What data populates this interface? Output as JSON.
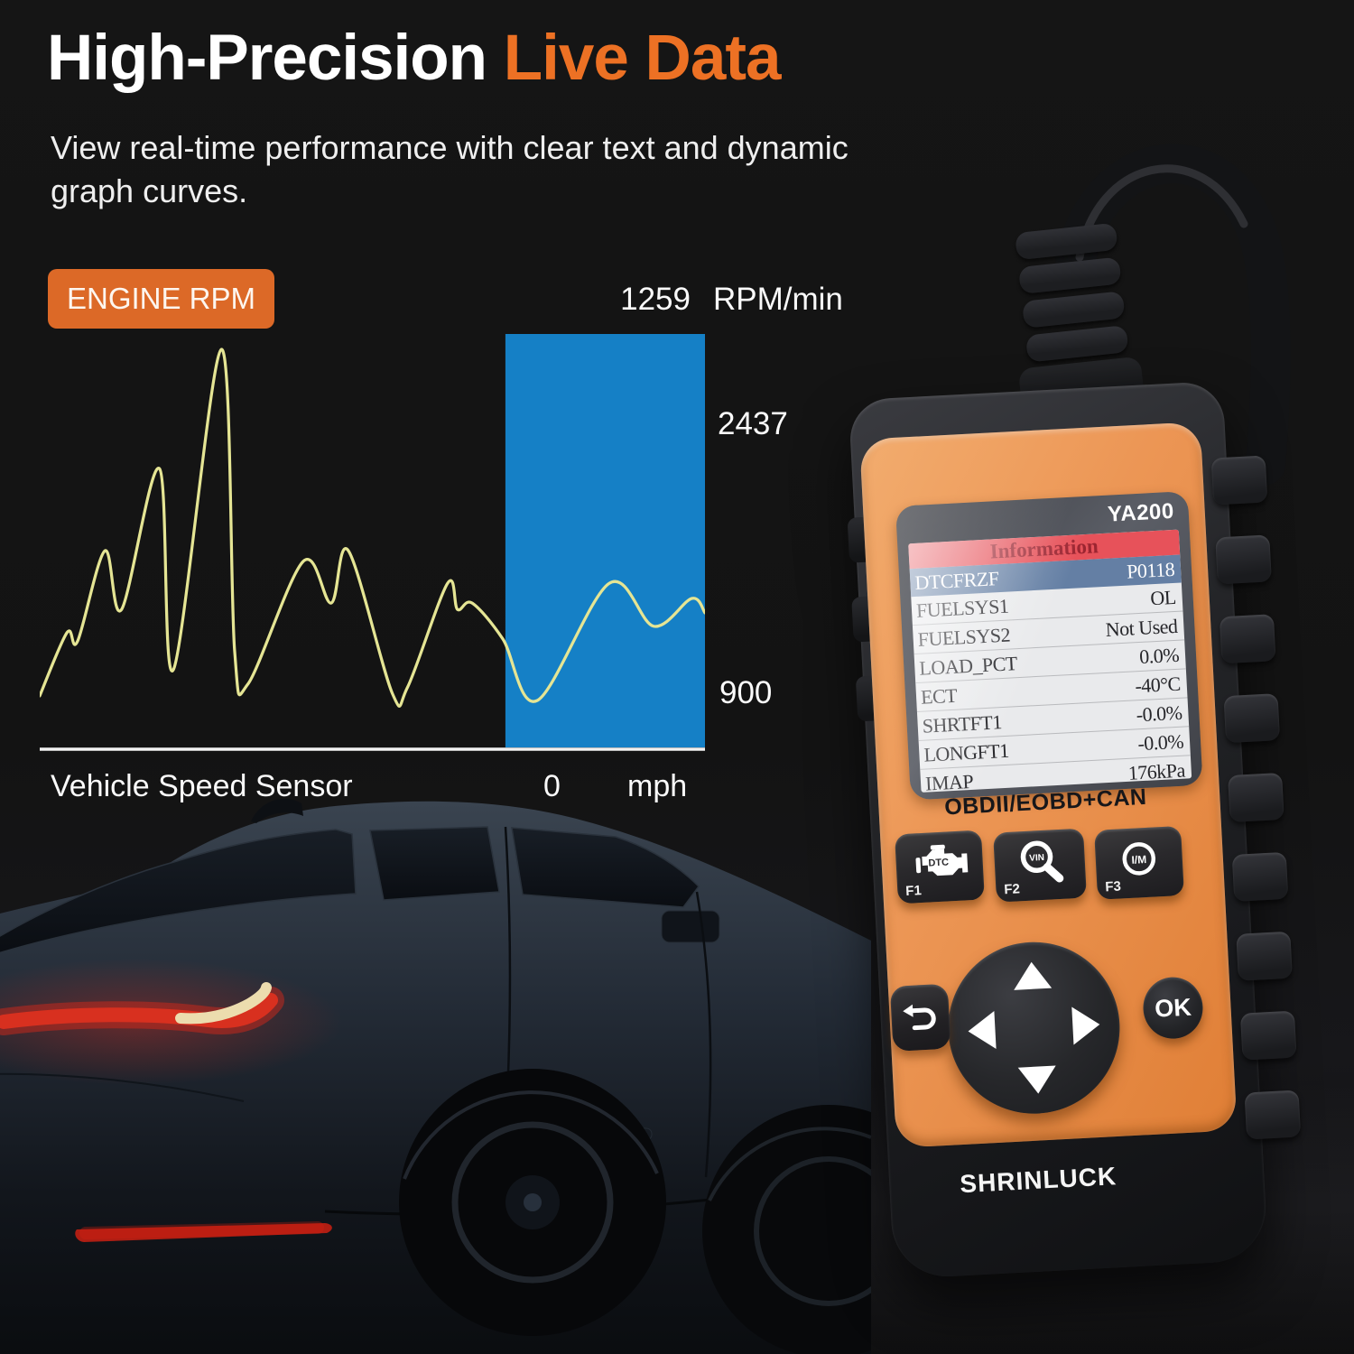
{
  "colors": {
    "accent_orange": "#ED7124",
    "badge_orange": "#DC6927",
    "bar_blue": "#1580C6",
    "curve_yellow": "#E5E594",
    "faceplate_orange": "#EC9655",
    "lcd_header_red": "#E7525A",
    "lcd_highlight_blue": "#647FA4"
  },
  "header": {
    "title_white": "High-Precision",
    "title_orange": "Live Data",
    "subtitle_line1": "View real-time performance with clear text and dynamic",
    "subtitle_line2": "graph curves."
  },
  "chart_data": {
    "type": "line",
    "title": "ENGINE RPM",
    "unit": "RPM/min",
    "current_value": 1259,
    "upper_ref": 2437,
    "lower_ref": 900,
    "x_axis": {
      "label": "Vehicle Speed Sensor",
      "value": 0,
      "unit": "mph"
    },
    "legend_position": "top-left-badge",
    "grid": false,
    "line_color": "#E5E594",
    "baseline_color": "#F2F2F2",
    "highlight_band": {
      "x_start": 0.7,
      "x_end": 1.0,
      "color": "#1580C6"
    },
    "points_norm": [
      [
        0.0,
        0.133
      ],
      [
        0.041,
        0.283
      ],
      [
        0.057,
        0.263
      ],
      [
        0.098,
        0.477
      ],
      [
        0.123,
        0.338
      ],
      [
        0.18,
        0.672
      ],
      [
        0.201,
        0.195
      ],
      [
        0.273,
        0.955
      ],
      [
        0.293,
        0.24
      ],
      [
        0.313,
        0.161
      ],
      [
        0.396,
        0.452
      ],
      [
        0.438,
        0.353
      ],
      [
        0.464,
        0.477
      ],
      [
        0.53,
        0.139
      ],
      [
        0.553,
        0.154
      ],
      [
        0.613,
        0.4
      ],
      [
        0.628,
        0.338
      ],
      [
        0.65,
        0.353
      ],
      [
        0.696,
        0.268
      ],
      [
        0.748,
        0.122
      ],
      [
        0.856,
        0.4
      ],
      [
        0.923,
        0.298
      ],
      [
        0.98,
        0.364
      ],
      [
        1.0,
        0.33
      ]
    ]
  },
  "device": {
    "model": "YA200",
    "brand": "SHRINLUCK",
    "standard_label": "OBDII/EOBD+CAN",
    "screen": {
      "title": "Information",
      "rows": [
        {
          "label": "DTCFRZF",
          "value": "P0118",
          "highlighted": true
        },
        {
          "label": "FUELSYS1",
          "value": "OL",
          "highlighted": false
        },
        {
          "label": "FUELSYS2",
          "value": "Not Used",
          "highlighted": false
        },
        {
          "label": "LOAD_PCT",
          "value": "0.0%",
          "highlighted": false
        },
        {
          "label": "ECT",
          "value": "-40°C",
          "highlighted": false
        },
        {
          "label": "SHRTFT1",
          "value": "-0.0%",
          "highlighted": false
        },
        {
          "label": "LONGFT1",
          "value": "-0.0%",
          "highlighted": false
        },
        {
          "label": "IMAP",
          "value": "176kPa",
          "highlighted": false
        }
      ]
    },
    "keypad": {
      "f1": {
        "label": "F1",
        "icon_text": "DTC"
      },
      "f2": {
        "label": "F2",
        "icon_text": "VIN"
      },
      "f3": {
        "label": "F3",
        "icon_text": "I/M"
      },
      "ok_label": "OK"
    }
  }
}
